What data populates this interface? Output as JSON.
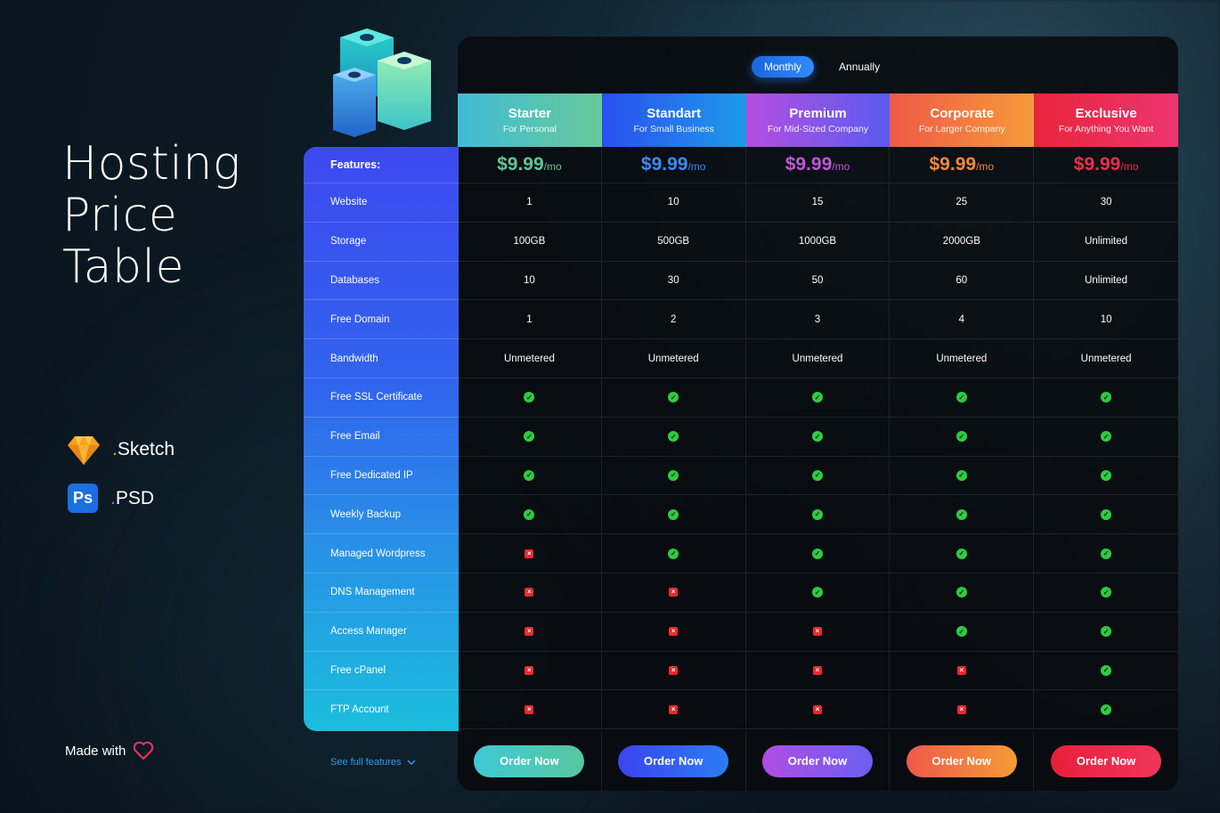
{
  "hero": {
    "line1": "Hosting",
    "line2": "Price",
    "line3": "Table"
  },
  "tools": {
    "sketch_dot": ".",
    "sketch_label": "Sketch",
    "psd_icon": "Ps",
    "psd_dot": ".",
    "psd_label": "PSD"
  },
  "made_with": "Made with",
  "billing": {
    "monthly": "Monthly",
    "annually": "Annually",
    "selected": "Monthly"
  },
  "features_header": "Features:",
  "features": [
    "Website",
    "Storage",
    "Databases",
    "Free Domain",
    "Bandwidth",
    "Free SSL Certificate",
    "Free Email",
    "Free Dedicated IP",
    "Weekly Backup",
    "Managed Wordpress",
    "DNS Management",
    "Access Manager",
    "Free cPanel",
    "FTP Account"
  ],
  "plans": [
    {
      "name": "Starter",
      "sub": "For Personal",
      "price": "$9.99",
      "unit": "/mo",
      "color": "#5fc79a",
      "grad": "linear-gradient(90deg,#3fbcd6,#69c99a)",
      "values": [
        "1",
        "100GB",
        "10",
        "1",
        "Unmetered"
      ],
      "checks": [
        true,
        true,
        true,
        true,
        false,
        false,
        false,
        false,
        false
      ],
      "order": "Order Now",
      "btn": "linear-gradient(90deg,#3ec9d6,#56c79e)"
    },
    {
      "name": "Standart",
      "sub": "For Small Business",
      "price": "$9.99",
      "unit": "/mo",
      "color": "#3b8cf5",
      "grad": "linear-gradient(90deg,#2a4ff0,#1e9be8)",
      "values": [
        "10",
        "500GB",
        "30",
        "2",
        "Unmetered"
      ],
      "checks": [
        true,
        true,
        true,
        true,
        true,
        false,
        false,
        false,
        false
      ],
      "order": "Order Now",
      "btn": "linear-gradient(90deg,#3a44f0,#2d7cf5)"
    },
    {
      "name": "Premium",
      "sub": "For Mid-Sized Company",
      "price": "$9.99",
      "unit": "/mo",
      "color": "#c257d8",
      "grad": "linear-gradient(90deg,#b44ee0,#5a5cf0)",
      "values": [
        "15",
        "1000GB",
        "50",
        "3",
        "Unmetered"
      ],
      "checks": [
        true,
        true,
        true,
        true,
        true,
        true,
        false,
        false,
        false
      ],
      "order": "Order Now",
      "btn": "linear-gradient(90deg,#b04de3,#6a5ff2)"
    },
    {
      "name": "Corporate",
      "sub": "For Larger Company",
      "price": "$9.99",
      "unit": "/mo",
      "color": "#f5873a",
      "grad": "linear-gradient(90deg,#ee5a48,#f79a3a)",
      "values": [
        "25",
        "2000GB",
        "60",
        "4",
        "Unmetered"
      ],
      "checks": [
        true,
        true,
        true,
        true,
        true,
        true,
        true,
        false,
        false
      ],
      "order": "Order Now",
      "btn": "linear-gradient(90deg,#ee5a4a,#f79a36)"
    },
    {
      "name": "Exclusive",
      "sub": "For Anything You Want",
      "price": "$9.99",
      "unit": "/mo",
      "color": "#ef2e4a",
      "grad": "linear-gradient(90deg,#e8253a,#ee3572)",
      "values": [
        "30",
        "Unlimited",
        "Unlimited",
        "10",
        "Unmetered"
      ],
      "checks": [
        true,
        true,
        true,
        true,
        true,
        true,
        true,
        true,
        true
      ],
      "order": "Order Now",
      "btn": "linear-gradient(90deg,#e81f3a,#f0355a)"
    }
  ],
  "see_full": "See full features"
}
